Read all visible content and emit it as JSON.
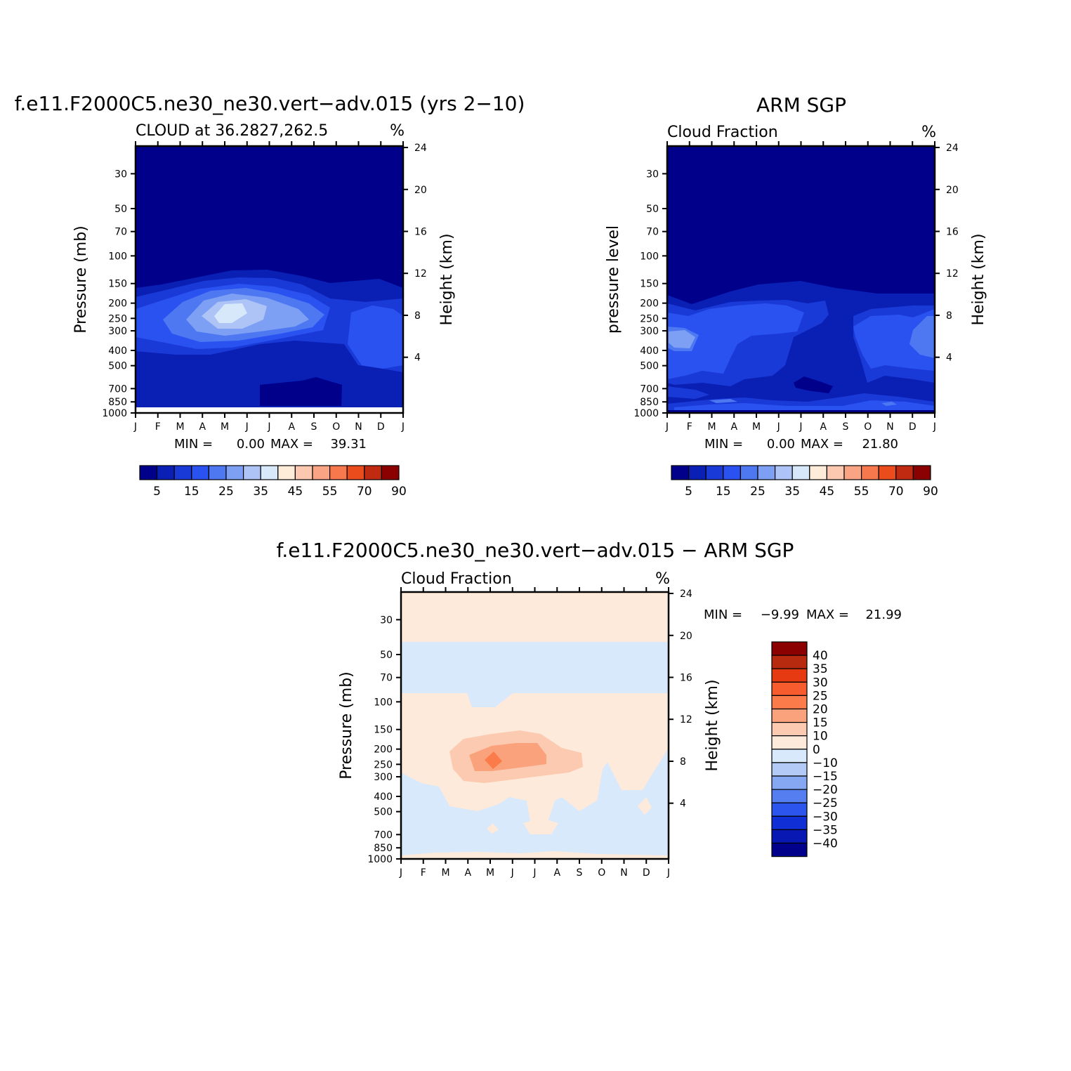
{
  "panels": [
    {
      "title": "f.e11.F2000C5.ne30_ne30.vert−adv.015 (yrs 2−10)",
      "subtitle": "CLOUD at 36.2827,262.5",
      "units": "%",
      "ylabel": "Pressure (mb)",
      "ylabel2": "Height (km)",
      "stats": {
        "min_label": "MIN =",
        "min": "0.00",
        "max_label": "MAX =",
        "max": "39.31"
      }
    },
    {
      "title": "ARM SGP",
      "subtitle": "Cloud Fraction",
      "units": "%",
      "ylabel": "pressure level",
      "ylabel2": "Height (km)",
      "stats": {
        "min_label": "MIN =",
        "min": "0.00",
        "max_label": "MAX =",
        "max": "21.80"
      }
    },
    {
      "title": "f.e11.F2000C5.ne30_ne30.vert−adv.015 − ARM SGP",
      "subtitle": "Cloud Fraction",
      "units": "%",
      "ylabel": "Pressure (mb)",
      "ylabel2": "Height (km)",
      "stats": {
        "min_label": "MIN =",
        "min": "−9.99",
        "max_label": "MAX =",
        "max": "21.99"
      }
    }
  ],
  "chart_data": [
    {
      "type": "heatmap",
      "title": "f.e11.F2000C5.ne30_ne30.vert−adv.015 (yrs 2−10)",
      "subtitle": "CLOUD at 36.2827,262.5",
      "x": [
        "J",
        "F",
        "M",
        "A",
        "M",
        "J",
        "J",
        "A",
        "S",
        "O",
        "N",
        "D",
        "J"
      ],
      "y_pressure_ticks": [
        "30",
        "50",
        "70",
        "100",
        "150",
        "200",
        "250",
        "300",
        "400",
        "500",
        "700",
        "850",
        "1000"
      ],
      "y_height_ticks": [
        "24",
        "20",
        "16",
        "12",
        "8",
        "4"
      ],
      "colorbar_labels": [
        "5",
        "15",
        "25",
        "35",
        "45",
        "55",
        "70",
        "90"
      ],
      "min": 0.0,
      "max": 39.31
    },
    {
      "type": "heatmap",
      "title": "ARM SGP",
      "subtitle": "Cloud Fraction",
      "x": [
        "J",
        "F",
        "M",
        "A",
        "M",
        "J",
        "J",
        "A",
        "S",
        "O",
        "N",
        "D",
        "J"
      ],
      "y_pressure_ticks": [
        "30",
        "50",
        "70",
        "100",
        "150",
        "200",
        "250",
        "300",
        "400",
        "500",
        "700",
        "850",
        "1000"
      ],
      "y_height_ticks": [
        "24",
        "20",
        "16",
        "12",
        "8",
        "4"
      ],
      "colorbar_labels": [
        "5",
        "15",
        "25",
        "35",
        "45",
        "55",
        "70",
        "90"
      ],
      "min": 0.0,
      "max": 21.8
    },
    {
      "type": "heatmap",
      "title": "f.e11.F2000C5.ne30_ne30.vert−adv.015 − ARM SGP",
      "subtitle": "Cloud Fraction",
      "x": [
        "J",
        "F",
        "M",
        "A",
        "M",
        "J",
        "J",
        "A",
        "S",
        "O",
        "N",
        "D",
        "J"
      ],
      "y_pressure_ticks": [
        "30",
        "50",
        "70",
        "100",
        "150",
        "200",
        "250",
        "300",
        "400",
        "500",
        "700",
        "850",
        "1000"
      ],
      "y_height_ticks": [
        "24",
        "20",
        "16",
        "12",
        "8",
        "4"
      ],
      "colorbar_labels": [
        "40",
        "35",
        "30",
        "25",
        "20",
        "15",
        "10",
        "0",
        "−10",
        "−15",
        "−20",
        "−25",
        "−30",
        "−35",
        "−40"
      ],
      "min": -9.99,
      "max": 21.99
    }
  ],
  "colors": {
    "seq": [
      "#00008b",
      "#0a1fb4",
      "#1a3ad8",
      "#2a52f0",
      "#4e78f2",
      "#7ea0f4",
      "#aec4f6",
      "#d8e8fb",
      "#feebd8",
      "#fcc9b0",
      "#f9a585",
      "#f7784c",
      "#ea4c1c",
      "#c02a10",
      "#8b0000"
    ],
    "div": [
      "#8b0000",
      "#b82a0f",
      "#e63a12",
      "#f75c2e",
      "#fb7b4a",
      "#faa27c",
      "#fccab0",
      "#feeadb",
      "#d8e9fb",
      "#b2caf5",
      "#86a8f2",
      "#557ff0",
      "#2b55ec",
      "#1030d6",
      "#0818b2",
      "#00008b"
    ]
  }
}
